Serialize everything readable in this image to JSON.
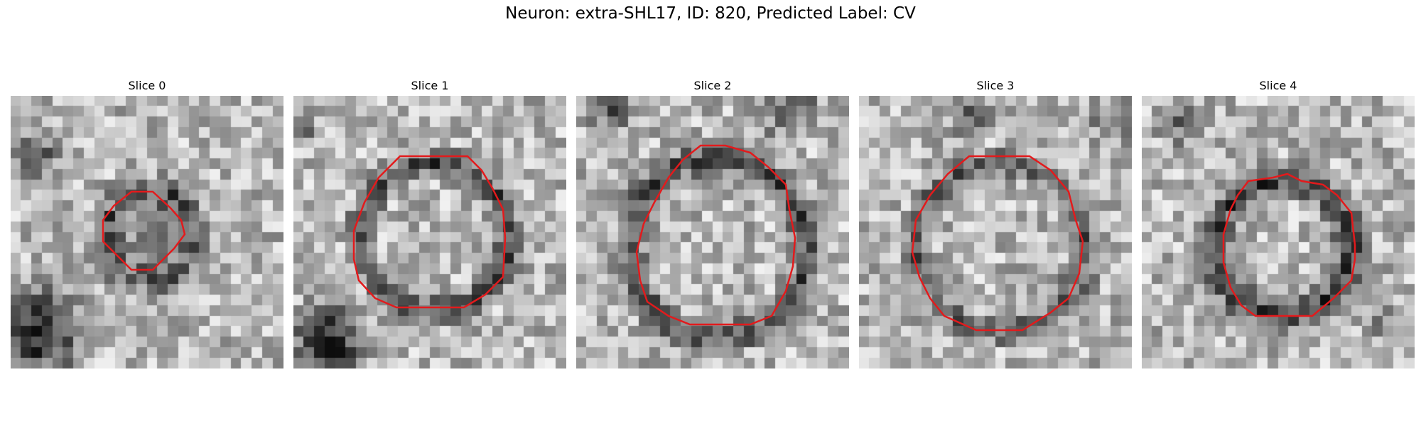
{
  "figure": {
    "title": "Neuron: extra-SHL17, ID: 820, Predicted Label: CV",
    "contour_color": "#e31a1c",
    "colormap": "gray",
    "panels": [
      {
        "title": "Slice 0"
      },
      {
        "title": "Slice 1"
      },
      {
        "title": "Slice 2"
      },
      {
        "title": "Slice 3"
      },
      {
        "title": "Slice 4"
      }
    ]
  }
}
